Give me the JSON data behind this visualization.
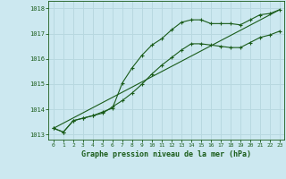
{
  "xlabel": "Graphe pression niveau de la mer (hPa)",
  "background_color": "#cce8f0",
  "grid_color": "#b8d8e0",
  "line_color": "#1a5c1a",
  "ylim": [
    1012.8,
    1018.3
  ],
  "xlim": [
    -0.5,
    23.5
  ],
  "yticks": [
    1013,
    1014,
    1015,
    1016,
    1017,
    1018
  ],
  "xticks": [
    0,
    1,
    2,
    3,
    4,
    5,
    6,
    7,
    8,
    9,
    10,
    11,
    12,
    13,
    14,
    15,
    16,
    17,
    18,
    19,
    20,
    21,
    22,
    23
  ],
  "series1_y": [
    1013.25,
    1013.1,
    1013.55,
    1013.65,
    1013.75,
    1013.9,
    1014.05,
    1015.05,
    1015.65,
    1016.15,
    1016.55,
    1016.8,
    1017.15,
    1017.45,
    1017.55,
    1017.55,
    1017.4,
    1017.4,
    1017.4,
    1017.35,
    1017.55,
    1017.75,
    1017.8,
    1017.95
  ],
  "series2_y": [
    1013.25,
    1013.1,
    1013.55,
    1013.65,
    1013.75,
    1013.85,
    1014.1,
    1014.35,
    1014.65,
    1015.0,
    1015.4,
    1015.75,
    1016.05,
    1016.35,
    1016.6,
    1016.6,
    1016.55,
    1016.5,
    1016.45,
    1016.45,
    1016.65,
    1016.85,
    1016.95,
    1017.1
  ],
  "series3_x": [
    0,
    23
  ],
  "series3_y": [
    1013.25,
    1017.95
  ]
}
